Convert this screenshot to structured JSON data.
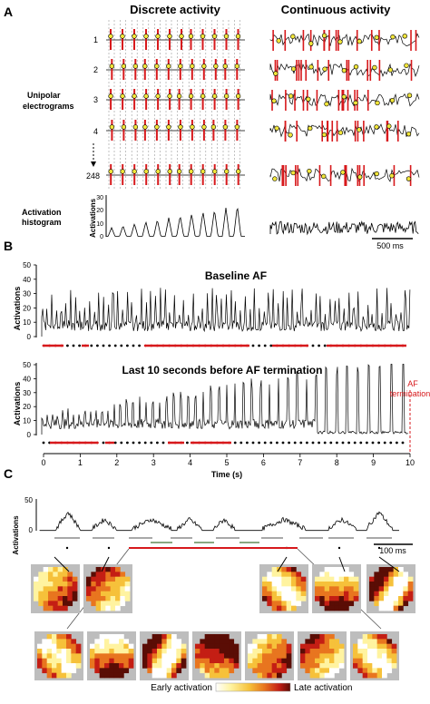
{
  "panelA": {
    "letter": "A",
    "title_left": "Discrete activity",
    "title_right": "Continuous activity",
    "row_labels": [
      "1",
      "2",
      "3",
      "4",
      "248"
    ],
    "label_unipolar_line1": "Unipolar",
    "label_unipolar_line2": "electrograms",
    "label_histogram_line1": "Activation",
    "label_histogram_line2": "histogram",
    "y_label": "Activations",
    "y_ticks": [
      "0",
      "10",
      "20",
      "30"
    ],
    "scale_label": "500 ms"
  },
  "panelB": {
    "letter": "B",
    "baseline_title": "Baseline AF",
    "last_title": "Last 10 seconds before AF termination",
    "y_label": "Activations",
    "y_ticks": [
      "0",
      "10",
      "20",
      "30",
      "40",
      "50"
    ],
    "x_ticks": [
      "0",
      "1",
      "2",
      "3",
      "4",
      "5",
      "6",
      "7",
      "8",
      "9",
      "10"
    ],
    "x_label": "Time (s)",
    "termination_line1": "AF",
    "termination_line2": "termination"
  },
  "panelC": {
    "letter": "C",
    "y_label": "Activations",
    "y_ticks": [
      "0",
      "50"
    ],
    "scale_label": "100 ms",
    "colorbar_left": "Early activation",
    "colorbar_right": "Late activation"
  },
  "colors": {
    "red": "#d7191c",
    "grey_bar": "#a9a9a9",
    "green_bar": "#8aa882",
    "dark": "#111111",
    "colormap": [
      "#ffffff",
      "#fff3a0",
      "#f6c13a",
      "#e8751f",
      "#c41e14",
      "#5a0d05"
    ]
  }
}
